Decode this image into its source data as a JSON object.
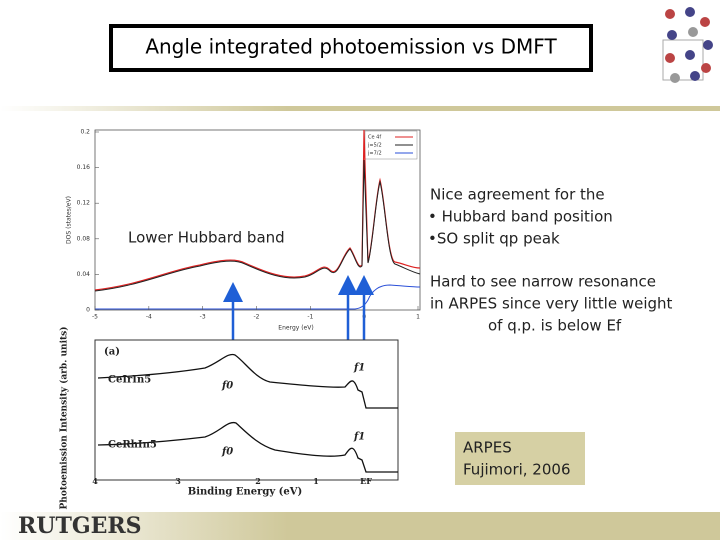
{
  "slide": {
    "title": "Angle integrated photoemission vs DMFT",
    "dos_figure": {
      "y_axis_label": "DOS (states/eV)",
      "x_axis_label": "Energy (eV)",
      "yticks": [
        "0.2",
        "0.16",
        "0.12",
        "0.08",
        "0.04",
        "0"
      ],
      "xticks": [
        "-5",
        "-4",
        "-3",
        "-2",
        "-1",
        "0",
        "1"
      ],
      "legend": [
        "Ce 4f",
        "j=5/2",
        "j=7/2"
      ],
      "annotation": "Lower Hubbard band"
    },
    "arpes_figure": {
      "panel": "(a)",
      "y_axis_label": "Photoemission Intensity (arb. units)",
      "x_axis_label": "Binding Energy (eV)",
      "xticks": [
        "4",
        "3",
        "2",
        "1",
        "EF"
      ],
      "samples": [
        "CeIrIn5",
        "CeRhIn5"
      ],
      "peak_labels": [
        "f0",
        "f1",
        "f0",
        "f1"
      ]
    },
    "notes": {
      "agreement": [
        "Nice agreement for the",
        "• Hubbard band position",
        "•SO split qp peak"
      ],
      "resonance": [
        "Hard to see narrow resonance",
        "in ARPES since very little weight",
        "of q.p. is below Ef"
      ]
    },
    "source": [
      "ARPES",
      "Fujimori, 2006"
    ],
    "logo": "RUTGERS"
  }
}
